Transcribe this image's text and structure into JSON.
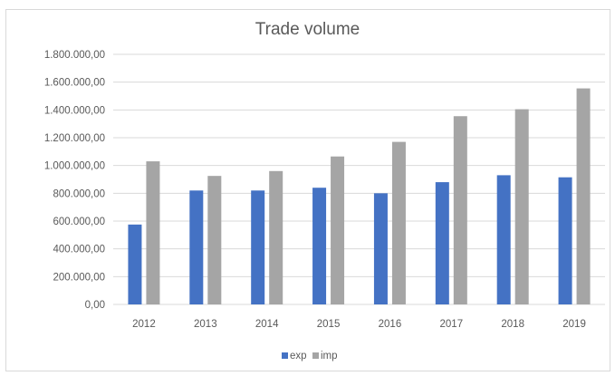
{
  "chart_data": {
    "type": "bar",
    "title": "Trade volume",
    "xlabel": "",
    "ylabel": "",
    "categories": [
      "2012",
      "2013",
      "2014",
      "2015",
      "2016",
      "2017",
      "2018",
      "2019"
    ],
    "series": [
      {
        "name": "exp",
        "color": "#4472c4",
        "values": [
          575000,
          820000,
          820000,
          840000,
          800000,
          880000,
          930000,
          915000
        ]
      },
      {
        "name": "imp",
        "color": "#a5a5a5",
        "values": [
          1030000,
          925000,
          960000,
          1065000,
          1170000,
          1355000,
          1405000,
          1555000
        ]
      }
    ],
    "ylim": [
      0,
      1800000
    ],
    "yticks": [
      0,
      200000,
      400000,
      600000,
      800000,
      1000000,
      1200000,
      1400000,
      1600000,
      1800000
    ],
    "ytick_labels": [
      "0,00",
      "200.000,00",
      "400.000,00",
      "600.000,00",
      "800.000,00",
      "1.000.000,00",
      "1.200.000,00",
      "1.400.000,00",
      "1.600.000,00",
      "1.800.000,00"
    ],
    "grid": true,
    "legend_position": "bottom",
    "gridline_color": "#d9d9d9"
  }
}
